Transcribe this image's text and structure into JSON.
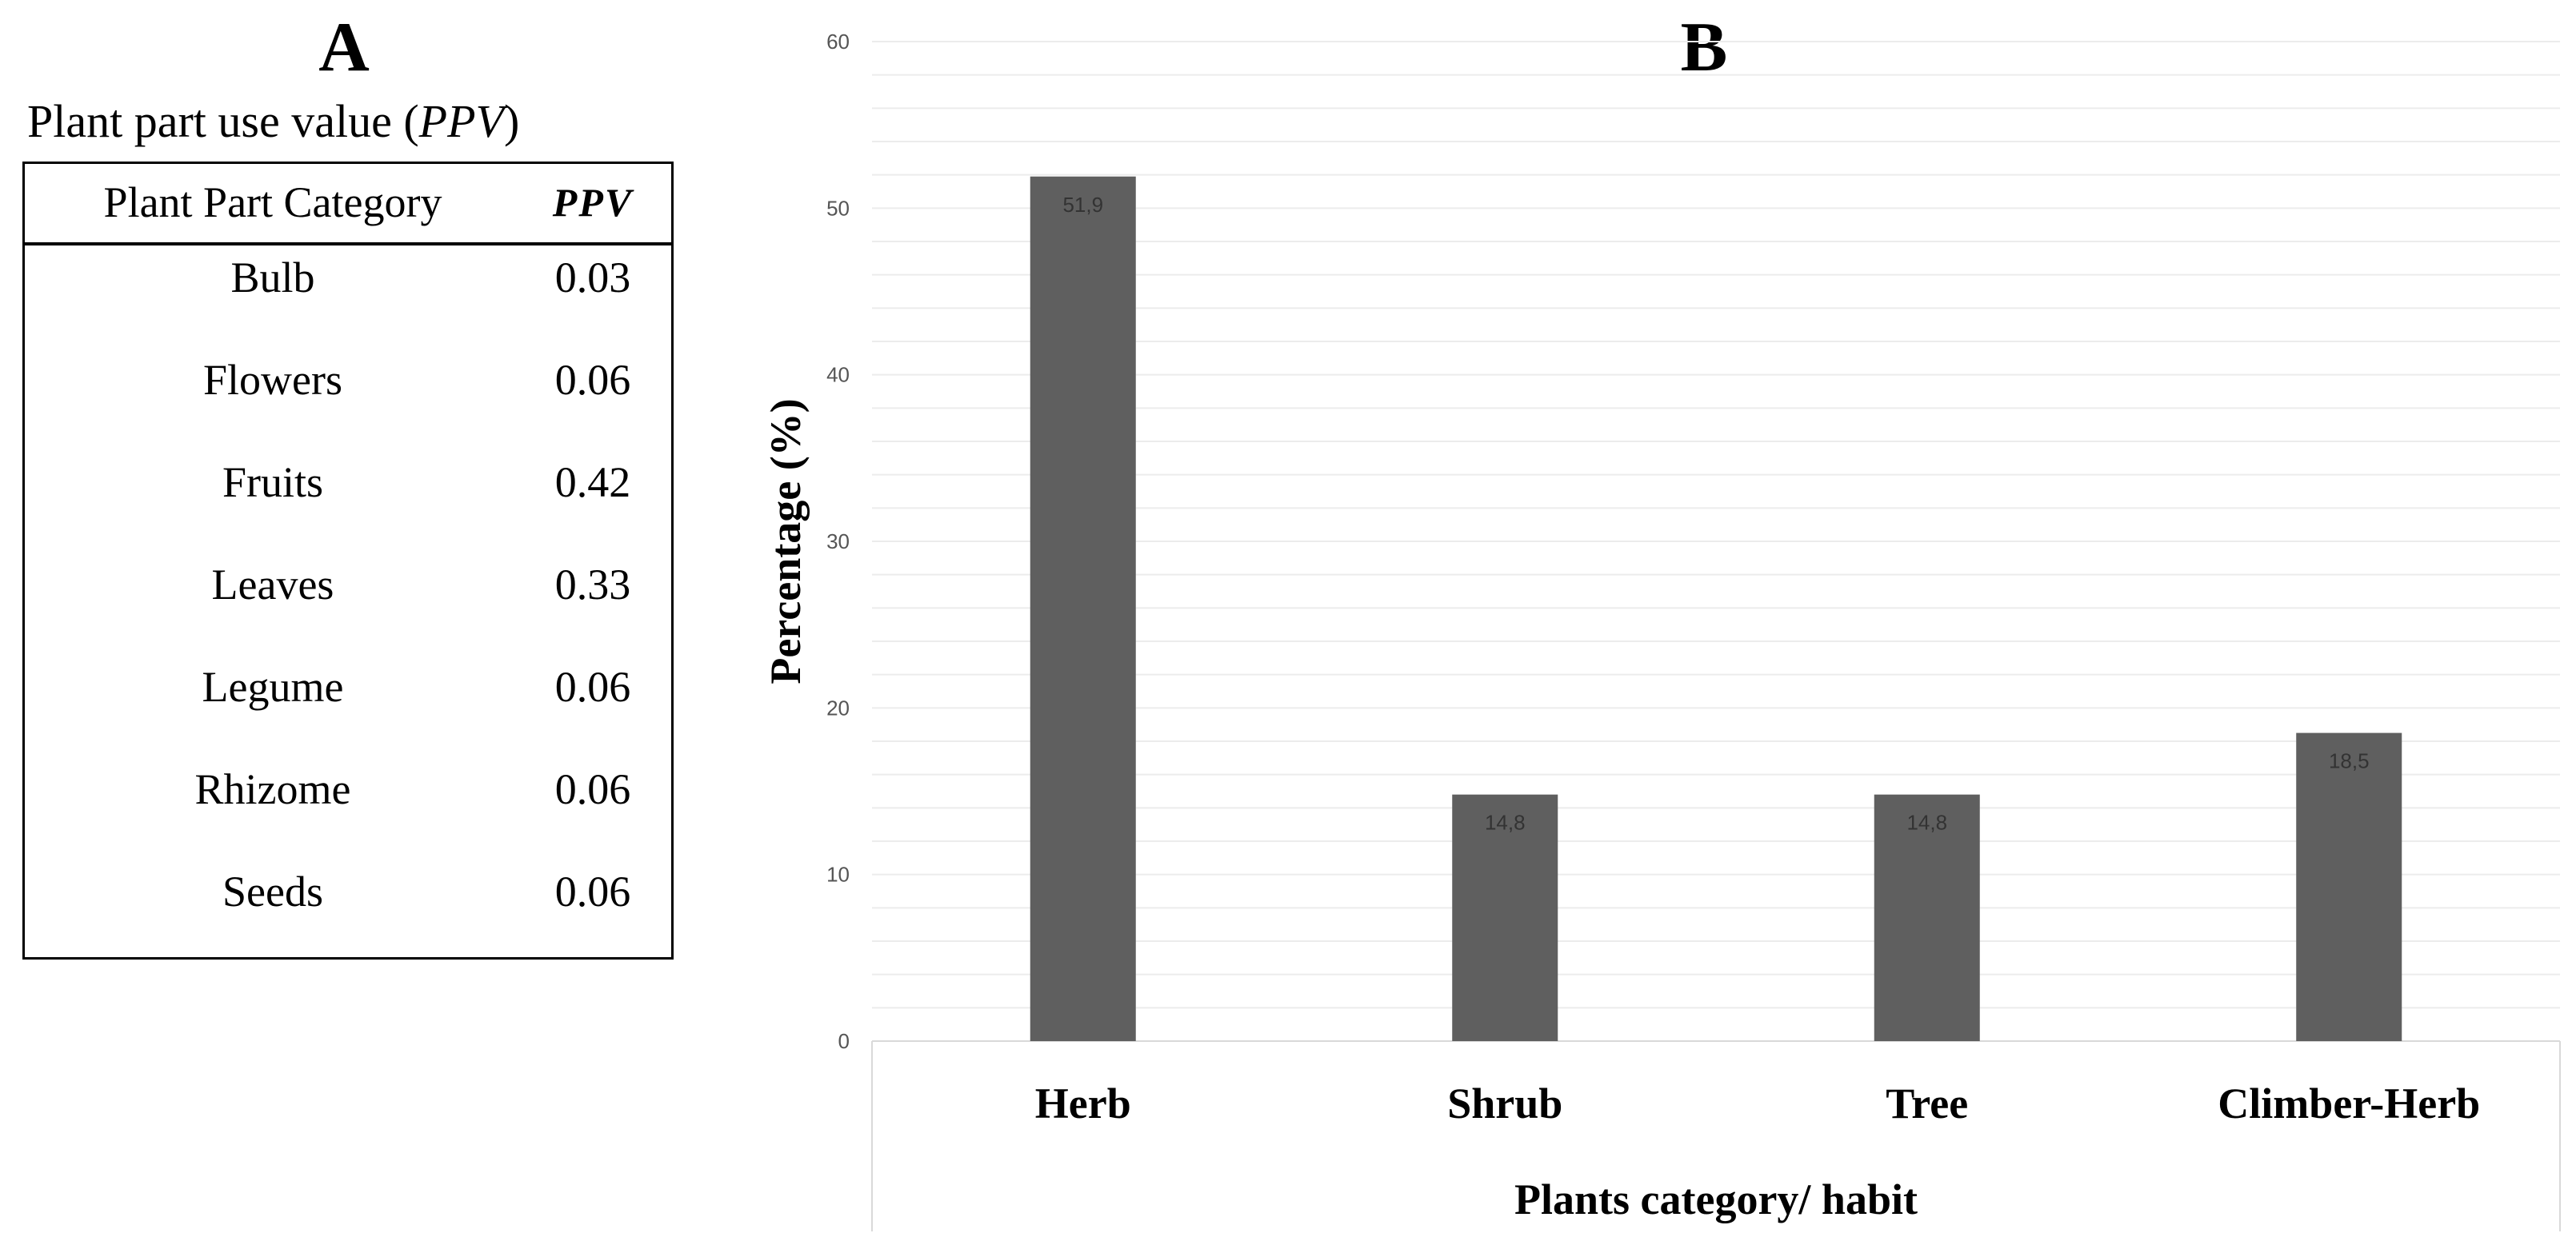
{
  "panel_a": {
    "letter": "A",
    "title_prefix": "Plant part use value (",
    "title_italic": "PPV",
    "title_suffix": ")",
    "table": {
      "headers": [
        "Plant Part Category",
        "PPV"
      ],
      "rows": [
        {
          "category": "Bulb",
          "ppv": "0.03"
        },
        {
          "category": "Flowers",
          "ppv": "0.06"
        },
        {
          "category": "Fruits",
          "ppv": "0.42"
        },
        {
          "category": "Leaves",
          "ppv": "0.33"
        },
        {
          "category": "Legume",
          "ppv": "0.06"
        },
        {
          "category": "Rhizome",
          "ppv": "0.06"
        },
        {
          "category": "Seeds",
          "ppv": "0.06"
        }
      ]
    }
  },
  "panel_b": {
    "letter": "B"
  },
  "chart_data": {
    "type": "bar",
    "categories": [
      "Herb",
      "Shrub",
      "Tree",
      "Climber-Herb"
    ],
    "values": [
      51.9,
      14.8,
      14.8,
      18.5
    ],
    "data_labels": [
      "51,9",
      "14,8",
      "14,8",
      "18,5"
    ],
    "title": "",
    "xlabel": "Plants category/ habit",
    "ylabel": "Percentage (%)",
    "ylim": [
      0,
      60
    ],
    "yticks": [
      0,
      10,
      20,
      30,
      40,
      50,
      60
    ],
    "minor_grid_step": 2,
    "grid": true,
    "legend": "none",
    "bar_color": "#5f5f5f",
    "grid_color": "#ececec"
  }
}
